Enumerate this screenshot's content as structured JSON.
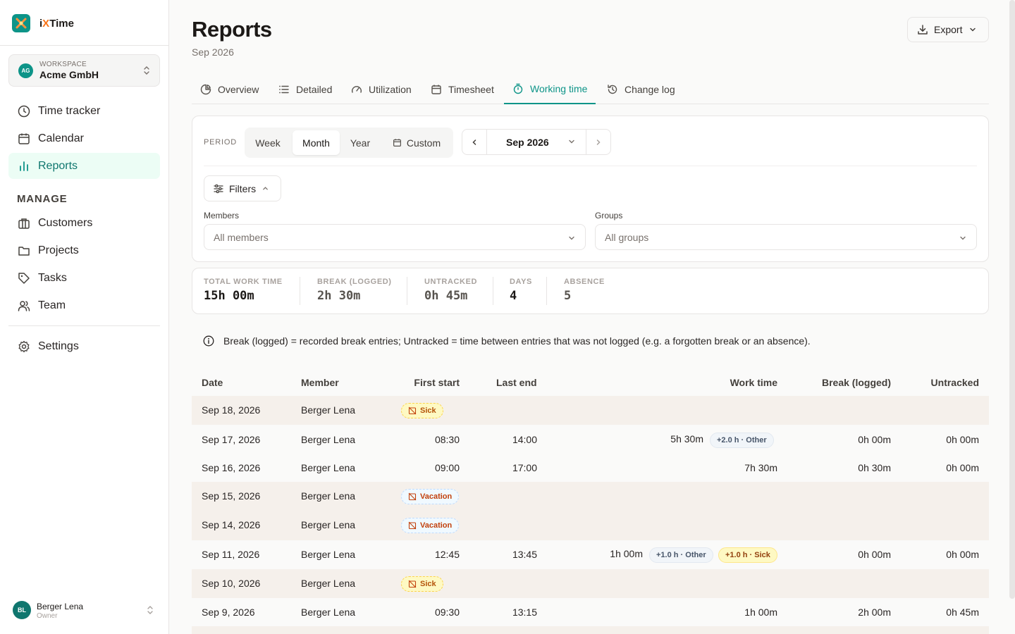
{
  "brand": {
    "prefix": "i",
    "x": "X",
    "suffix": "Time"
  },
  "workspace": {
    "badge": "AG",
    "caption": "WORKSPACE",
    "name": "Acme GmbH"
  },
  "nav": {
    "time_tracker": "Time tracker",
    "calendar": "Calendar",
    "reports": "Reports",
    "manage_heading": "MANAGE",
    "customers": "Customers",
    "projects": "Projects",
    "tasks": "Tasks",
    "team": "Team",
    "settings": "Settings"
  },
  "user": {
    "initials": "BL",
    "name": "Berger Lena",
    "role": "Owner"
  },
  "page": {
    "title": "Reports",
    "subtitle": "Sep 2026",
    "export_label": "Export"
  },
  "tabs": {
    "overview": "Overview",
    "detailed": "Detailed",
    "utilization": "Utilization",
    "timesheet": "Timesheet",
    "working_time": "Working time",
    "change_log": "Change log",
    "active": "Working time"
  },
  "period": {
    "label": "PERIOD",
    "week": "Week",
    "month": "Month",
    "year": "Year",
    "custom": "Custom",
    "selected": "Month",
    "current": "Sep 2026"
  },
  "filters": {
    "button": "Filters",
    "members_label": "Members",
    "members_placeholder": "All members",
    "groups_label": "Groups",
    "groups_placeholder": "All groups"
  },
  "stats": {
    "total_label": "TOTAL WORK TIME",
    "total_value": "15h 00m",
    "break_label": "BREAK (LOGGED)",
    "break_value": "2h 30m",
    "untracked_label": "UNTRACKED",
    "untracked_value": "0h 45m",
    "days_label": "DAYS",
    "days_value": "4",
    "absence_label": "ABSENCE",
    "absence_value": "5"
  },
  "info_text": "Break (logged) = recorded break entries; Untracked = time between entries that was not logged (e.g. a forgotten break or an absence).",
  "table": {
    "headers": {
      "date": "Date",
      "member": "Member",
      "first_start": "First start",
      "last_end": "Last end",
      "work_time": "Work time",
      "break": "Break (logged)",
      "untracked": "Untracked"
    },
    "rows": [
      {
        "date": "Sep 18, 2026",
        "member": "Berger Lena",
        "absence": "Sick"
      },
      {
        "date": "Sep 17, 2026",
        "member": "Berger Lena",
        "first_start": "08:30",
        "last_end": "14:00",
        "work_time": "5h 30m",
        "chip1": "+2.0 h · Other",
        "break": "0h 00m",
        "untracked": "0h 00m"
      },
      {
        "date": "Sep 16, 2026",
        "member": "Berger Lena",
        "first_start": "09:00",
        "last_end": "17:00",
        "work_time": "7h 30m",
        "break": "0h 30m",
        "untracked": "0h 00m"
      },
      {
        "date": "Sep 15, 2026",
        "member": "Berger Lena",
        "absence": "Vacation"
      },
      {
        "date": "Sep 14, 2026",
        "member": "Berger Lena",
        "absence": "Vacation"
      },
      {
        "date": "Sep 11, 2026",
        "member": "Berger Lena",
        "first_start": "12:45",
        "last_end": "13:45",
        "work_time": "1h 00m",
        "chip1": "+1.0 h · Other",
        "chip2": "+1.0 h · Sick",
        "break": "0h 00m",
        "untracked": "0h 00m"
      },
      {
        "date": "Sep 10, 2026",
        "member": "Berger Lena",
        "absence": "Sick"
      },
      {
        "date": "Sep 9, 2026",
        "member": "Berger Lena",
        "first_start": "09:30",
        "last_end": "13:15",
        "work_time": "1h 00m",
        "break": "2h 00m",
        "untracked": "0h 45m"
      }
    ]
  },
  "colors": {
    "accent": "#0d9488",
    "sick": "#b45309",
    "vacation": "#c2410c",
    "absence_row": "#f5f0eb"
  }
}
